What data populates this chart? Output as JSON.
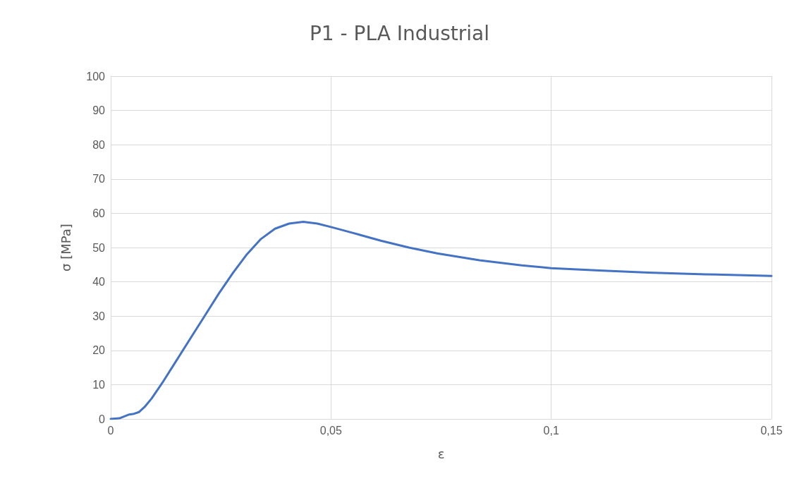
{
  "chart_data": {
    "type": "line",
    "title": "P1 - PLA Industrial",
    "xlabel": "ε",
    "ylabel": "σ [MPa]",
    "x": [
      0,
      0.002,
      0.0042,
      0.0053,
      0.0064,
      0.0077,
      0.0093,
      0.0117,
      0.0149,
      0.0181,
      0.0213,
      0.0245,
      0.0277,
      0.0309,
      0.0341,
      0.0373,
      0.0405,
      0.0437,
      0.0469,
      0.05,
      0.0549,
      0.0613,
      0.0677,
      0.0741,
      0.0837,
      0.0933,
      0.1,
      0.1109,
      0.122,
      0.135,
      0.15
    ],
    "series": [
      {
        "color": "#4472c4",
        "values": [
          0,
          0.2,
          1.3,
          1.5,
          2,
          3.5,
          6,
          10.5,
          17,
          23.5,
          30,
          36.5,
          42.5,
          48,
          52.5,
          55.5,
          57,
          57.5,
          57,
          56,
          54.3,
          52,
          50,
          48.3,
          46.3,
          44.8,
          44,
          43.3,
          42.7,
          42.2,
          41.7
        ]
      }
    ],
    "xlim": [
      0,
      0.15
    ],
    "xticks": [
      0,
      {
        "value": 0.05,
        "label": "0,05"
      },
      {
        "value": 0.1,
        "label": "0,1"
      },
      {
        "value": 0.15,
        "label": "0,15"
      }
    ],
    "ylim": [
      0,
      100
    ],
    "yticks": [
      0,
      10,
      20,
      30,
      40,
      50,
      60,
      70,
      80,
      90,
      100
    ],
    "grid": true,
    "marker": "none",
    "line_style": "solid"
  }
}
